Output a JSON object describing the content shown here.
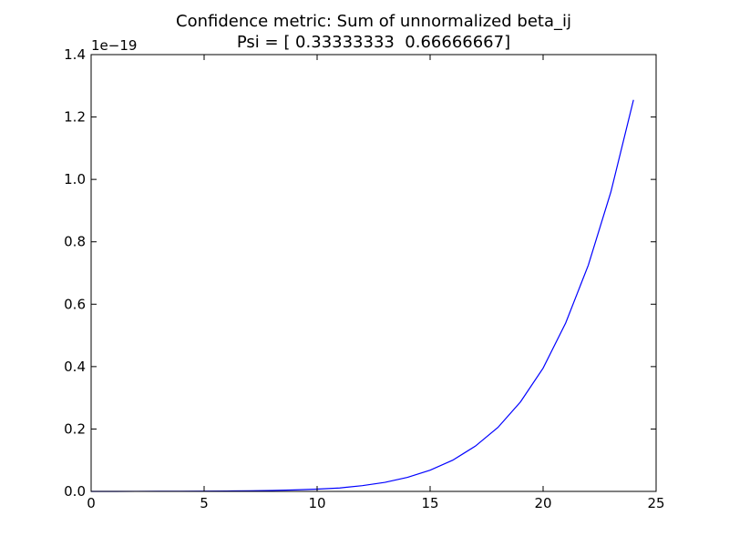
{
  "chart_data": {
    "type": "line",
    "title": "Confidence metric: Sum of unnormalized beta_ij",
    "subtitle": "Psi = [ 0.33333333  0.66666667]",
    "xlabel": "",
    "ylabel": "",
    "y_scale_label": "1e−19",
    "xlim": [
      0,
      25
    ],
    "ylim": [
      0,
      1.4
    ],
    "x_ticks": [
      "0",
      "5",
      "10",
      "15",
      "20",
      "25"
    ],
    "y_ticks": [
      "0.0",
      "0.2",
      "0.4",
      "0.6",
      "0.8",
      "1.0",
      "1.2",
      "1.4"
    ],
    "grid": false,
    "legend": "none",
    "line_color": "#0000ff",
    "series": [
      {
        "x": [
          0,
          1,
          2,
          3,
          4,
          5,
          6,
          7,
          8,
          9,
          10,
          11,
          12,
          13,
          14,
          15,
          16,
          17,
          18,
          19,
          20,
          21,
          22,
          23,
          24
        ],
        "values": [
          5e-05,
          0.0001,
          0.0002,
          0.0003,
          0.0005,
          0.0008,
          0.0013,
          0.002,
          0.0031,
          0.0047,
          0.0073,
          0.011,
          0.0185,
          0.029,
          0.045,
          0.068,
          0.1,
          0.145,
          0.205,
          0.287,
          0.395,
          0.54,
          0.725,
          0.96,
          1.255
        ]
      }
    ]
  }
}
